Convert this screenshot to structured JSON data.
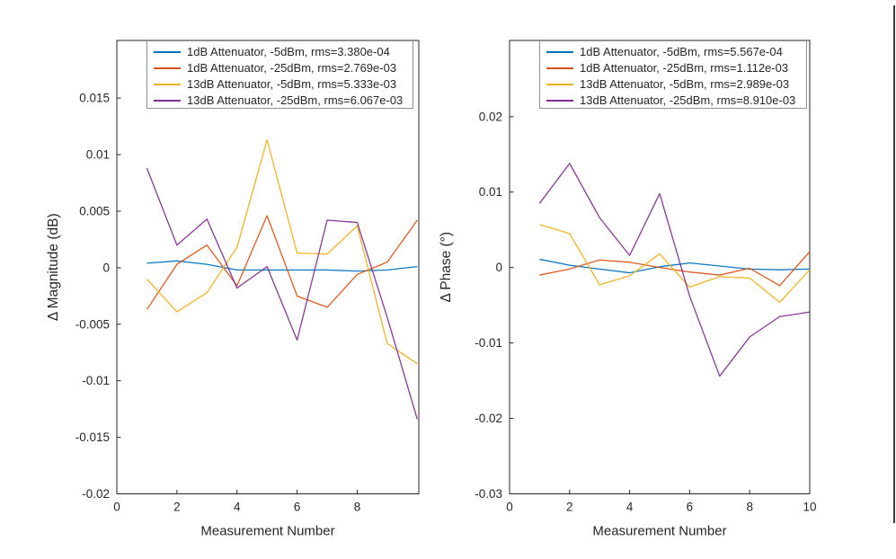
{
  "figure": {
    "background": "#ffffff",
    "axes_color": "#262626",
    "legend_border_color": "#8f8f8f",
    "window_edge_artifact": true
  },
  "chart_data": [
    {
      "type": "line",
      "title": "",
      "xlabel": "Measurement Number",
      "ylabel": "Δ Magnitude (dB)",
      "xlim": [
        0,
        10.05
      ],
      "ylim": [
        -0.02,
        0.0201
      ],
      "grid": false,
      "legend_position": "top-left-inside",
      "xticks": [
        "0",
        "2",
        "4",
        "6",
        "8"
      ],
      "yticks": [
        "-0.02",
        "-0.015",
        "-0.01",
        "-0.005",
        "0",
        "0.005",
        "0.01",
        "0.015"
      ],
      "x": [
        1,
        2,
        3,
        4,
        5,
        6,
        7,
        8,
        9,
        10
      ],
      "series": [
        {
          "name": "1dB Attenuator, -5dBm, rms=3.380e-04",
          "color": "#0072BD",
          "values": [
            0.0004,
            0.0006,
            0.0003,
            -0.0002,
            -0.0002,
            -0.0002,
            -0.0002,
            -0.0003,
            -0.0002,
            0.0001
          ]
        },
        {
          "name": "1dB Attenuator, -25dBm, rms=2.769e-03",
          "color": "#D95319",
          "values": [
            -0.0037,
            0.0003,
            0.002,
            -0.0016,
            0.0046,
            -0.0025,
            -0.0035,
            -0.0006,
            0.0005,
            0.0042
          ]
        },
        {
          "name": "13dB Attenuator, -5dBm, rms=5.333e-03",
          "color": "#EDB120",
          "values": [
            -0.001,
            -0.0039,
            -0.0022,
            0.0018,
            0.0113,
            0.0013,
            0.0012,
            0.0037,
            -0.0067,
            -0.0085
          ]
        },
        {
          "name": "13dB Attenuator, -25dBm, rms=6.067e-03",
          "color": "#7E2F8E",
          "values": [
            0.0088,
            0.002,
            0.0043,
            -0.0018,
            0.0001,
            -0.0064,
            0.0042,
            0.004,
            -0.0044,
            -0.0134
          ]
        }
      ]
    },
    {
      "type": "line",
      "title": "",
      "xlabel": "Measurement Number",
      "ylabel": "Δ Phase (°)",
      "xlim": [
        0,
        10
      ],
      "ylim": [
        -0.03,
        0.0301
      ],
      "grid": false,
      "legend_position": "top-left-inside",
      "xticks": [
        "0",
        "2",
        "4",
        "6",
        "8",
        "10"
      ],
      "yticks": [
        "-0.03",
        "-0.02",
        "-0.01",
        "0",
        "0.01",
        "0.02"
      ],
      "x": [
        1,
        2,
        3,
        4,
        5,
        6,
        7,
        8,
        9,
        10
      ],
      "series": [
        {
          "name": "1dB Attenuator, -5dBm, rms=5.567e-04",
          "color": "#0072BD",
          "values": [
            0.0011,
            0.0003,
            -0.0002,
            -0.0007,
            0.0001,
            0.0006,
            0.0002,
            -0.0002,
            -0.0003,
            -0.0002
          ]
        },
        {
          "name": "1dB Attenuator, -25dBm, rms=1.112e-03",
          "color": "#D95319",
          "values": [
            -0.001,
            -0.0002,
            0.001,
            0.0007,
            0.0,
            -0.0006,
            -0.001,
            -0.0001,
            -0.0024,
            0.0021
          ]
        },
        {
          "name": "13dB Attenuator, -5dBm, rms=2.989e-03",
          "color": "#EDB120",
          "values": [
            0.0057,
            0.0045,
            -0.0023,
            -0.0011,
            0.0018,
            -0.0026,
            -0.0012,
            -0.0014,
            -0.0046,
            -0.0003
          ]
        },
        {
          "name": "13dB Attenuator, -25dBm, rms=8.910e-03",
          "color": "#7E2F8E",
          "values": [
            0.0085,
            0.0138,
            0.0066,
            0.0016,
            0.0098,
            -0.0038,
            -0.0144,
            -0.0092,
            -0.0065,
            -0.0059
          ]
        }
      ]
    }
  ]
}
